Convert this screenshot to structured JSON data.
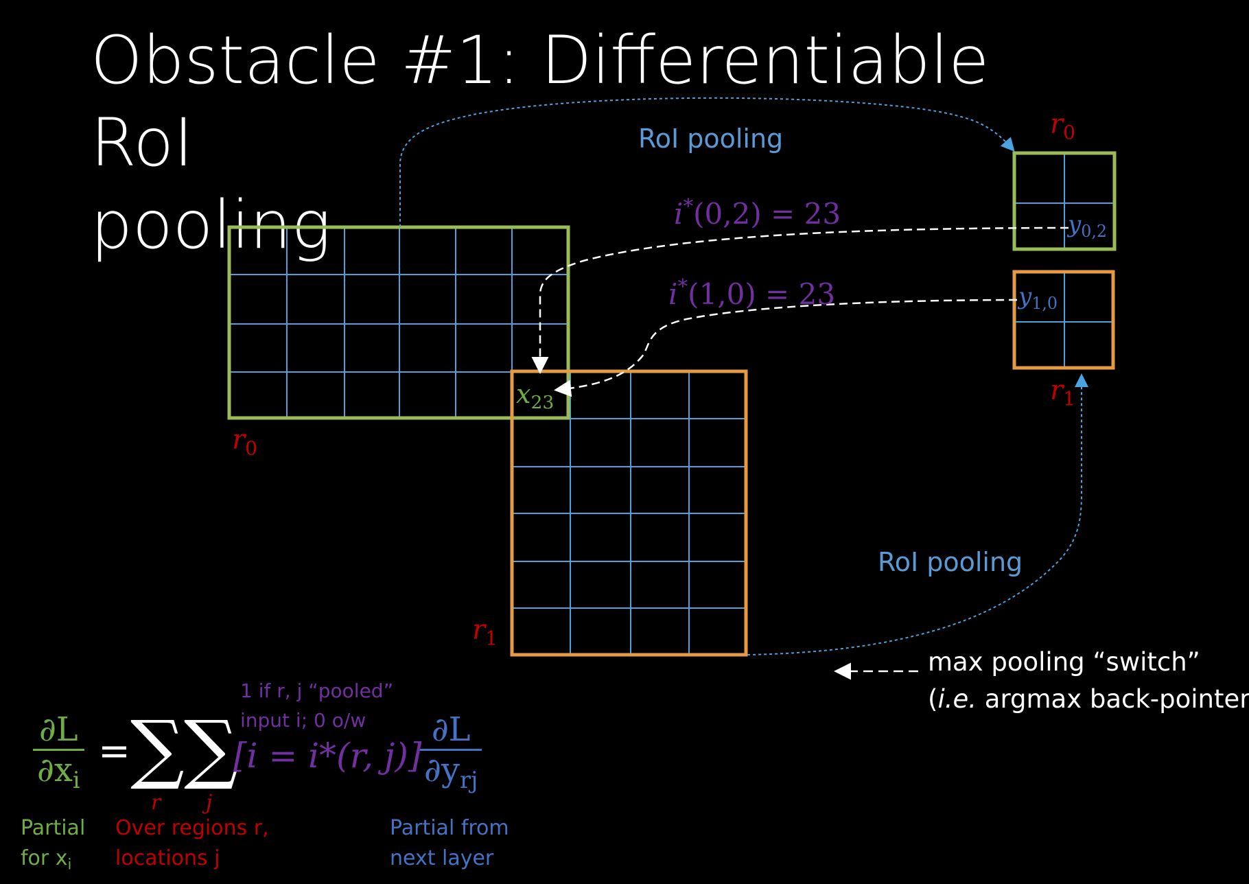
{
  "title_line1": "Obstacle #1: Differentiable RoI",
  "title_line2": "pooling",
  "colors": {
    "green": "#9bbb59",
    "orange": "#e59a44",
    "grid": "#4aa3df",
    "blue_text": "#5b9bd5",
    "purple": "#7030a0",
    "red": "#c00000"
  },
  "diagram": {
    "roi_pooling_top": "RoI pooling",
    "roi_pooling_bottom": "RoI pooling",
    "switch_top": {
      "base": "i",
      "star": "*",
      "args": "(0,2) = 23"
    },
    "switch_bottom": {
      "base": "i",
      "star": "*",
      "args": "(1,0) = 23"
    },
    "r0_label": {
      "base": "r",
      "sub": "0"
    },
    "r1_label": {
      "base": "r",
      "sub": "1"
    },
    "r0_out_label": {
      "base": "r",
      "sub": "0"
    },
    "r1_out_label": {
      "base": "r",
      "sub": "1"
    },
    "x23": {
      "base": "x",
      "sub": "23"
    },
    "y02": {
      "base": "y",
      "sub": "0,2"
    },
    "y10": {
      "base": "y",
      "sub": "1,0"
    }
  },
  "legend": {
    "line1": "max pooling “switch”",
    "line2_open": "(",
    "line2_ie": "i.e.",
    "line2_rest": " argmax back-pointer)"
  },
  "equation": {
    "lhs_num": "∂L",
    "lhs_den_base": "∂x",
    "lhs_den_sub": "i",
    "equals": "=",
    "sigma": "∑",
    "sum1_sub": "r",
    "sum2_sub": "j",
    "bracket": "[i = i*(r, j)]",
    "rhs_num": "∂L",
    "rhs_den_base": "∂y",
    "rhs_den_sub": "rj",
    "note_line1": "1 if r, j “pooled”",
    "note_line2": "input i; 0 o/w"
  },
  "captions": {
    "partial_xi_1": "Partial",
    "partial_xi_2": "for x",
    "partial_xi_sub": "i",
    "over_regions_1": "Over regions r,",
    "over_regions_2": "locations j",
    "partial_next_1": "Partial from",
    "partial_next_2": "next layer"
  }
}
